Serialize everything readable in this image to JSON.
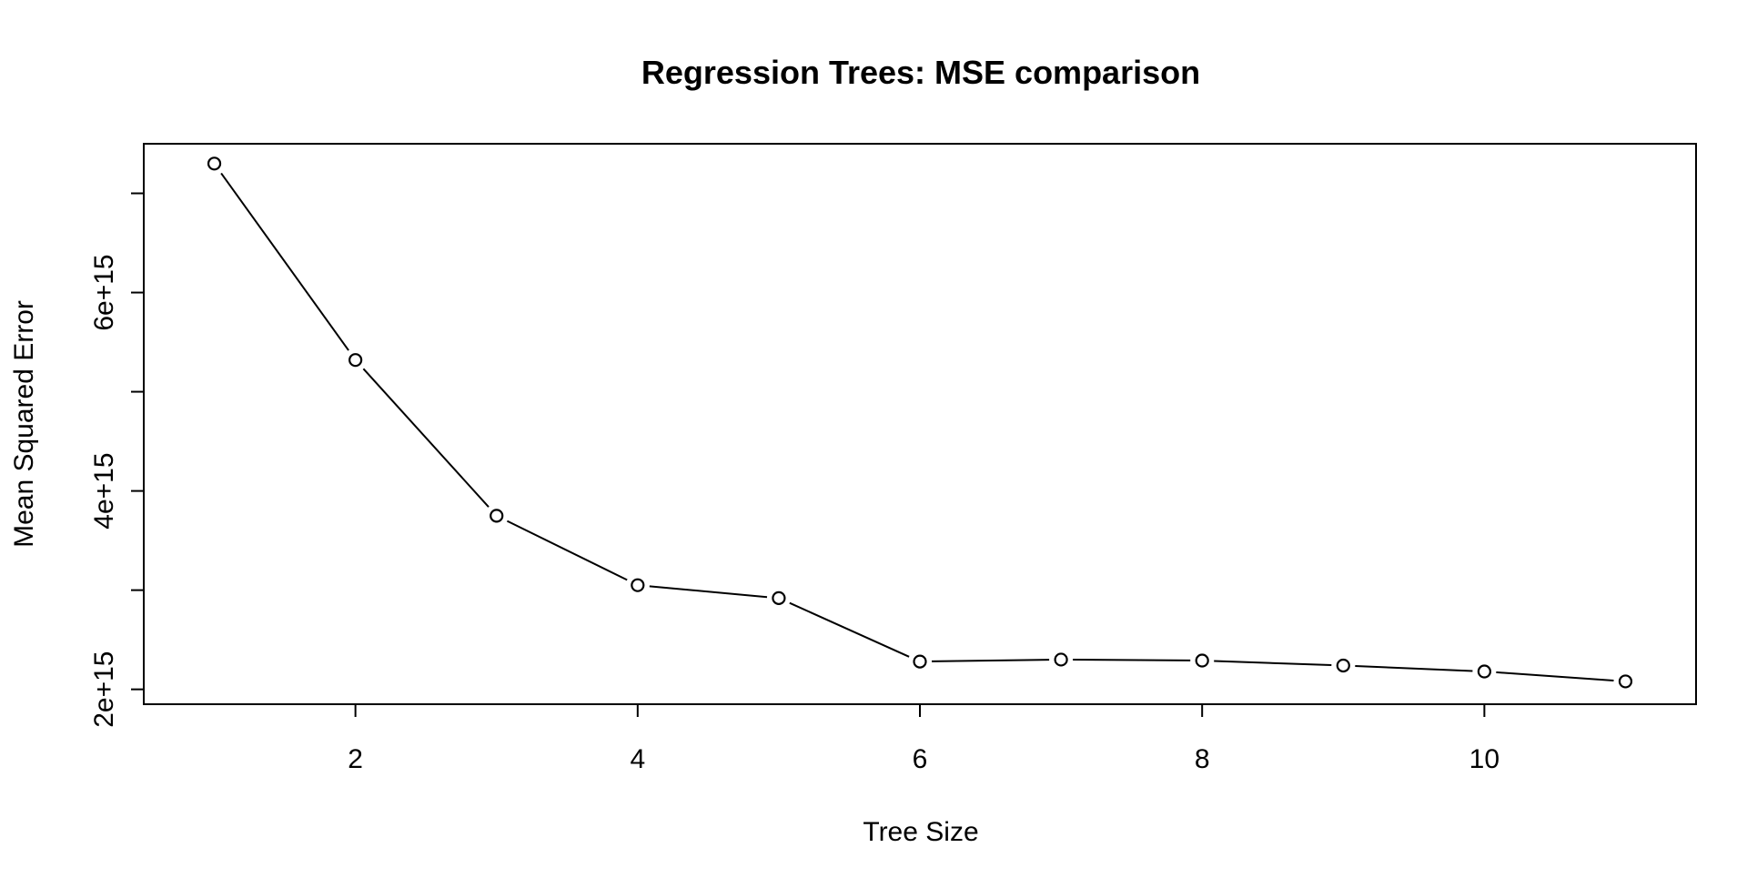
{
  "chart_data": {
    "type": "line",
    "title": "Regression Trees: MSE comparison",
    "xlabel": "Tree Size",
    "ylabel": "Mean Squared Error",
    "x": [
      1,
      2,
      3,
      4,
      5,
      6,
      7,
      8,
      9,
      10,
      11
    ],
    "series": [
      {
        "values": [
          7300000000000000.0,
          5320000000000000.0,
          3750000000000000.0,
          3050000000000000.0,
          2920000000000000.0,
          2280000000000000.0,
          2300000000000000.0,
          2290000000000000.0,
          2240000000000000.0,
          2180000000000000.0,
          2080000000000000.0
        ]
      }
    ],
    "xlim": [
      0.5,
      11.5
    ],
    "ylim": [
      1850000000000000.0,
      7500000000000000.0
    ],
    "x_ticks": [
      2,
      4,
      6,
      8,
      10
    ],
    "x_tick_labels": [
      "2",
      "4",
      "6",
      "8",
      "10"
    ],
    "y_ticks": [
      2000000000000000.0,
      3000000000000000.0,
      4000000000000000.0,
      5000000000000000.0,
      6000000000000000.0,
      7000000000000000.0
    ],
    "y_tick_labels": [
      "2e+15",
      "",
      "4e+15",
      "",
      "6e+15",
      ""
    ],
    "markers": "open-circle",
    "grid": false,
    "legend": "none",
    "colors": {
      "line": "#000000",
      "marker": "#000000",
      "background": "#ffffff"
    }
  }
}
